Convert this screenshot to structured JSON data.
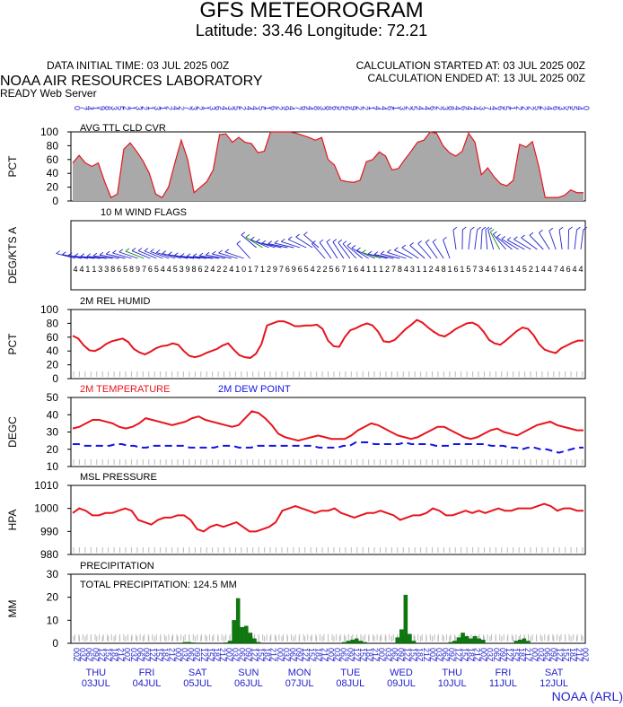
{
  "header": {
    "title": "GFS METEOROGRAM",
    "subtitle": "Latitude: 33.46 Longitude:  72.21",
    "init_time": "DATA INITIAL TIME: 03 JUL 2025 00Z",
    "calc_started": "CALCULATION STARTED AT: 03 JUL 2025 00Z",
    "calc_ended": "CALCULATION ENDED AT: 13 JUL 2025 00Z",
    "lab": "NOAA AIR RESOURCES LABORATORY",
    "server": "READY Web Server",
    "credit": "NOAA (ARL)"
  },
  "colors": {
    "cloud_fill": "#a9a9a9",
    "line_red": "#e8141e",
    "line_blue": "#1414e6",
    "precip": "#0a7a0a",
    "wind_blue": "#2222cc",
    "wind_green": "#0a8a0a",
    "tick_blue": "#2222cc"
  },
  "time_axis": {
    "hour_labels": [
      "00",
      "03",
      "06",
      "09",
      "12",
      "15",
      "18",
      "21"
    ],
    "days": [
      {
        "weekday": "THU",
        "date": "03JUL"
      },
      {
        "weekday": "FRI",
        "date": "04JUL"
      },
      {
        "weekday": "SAT",
        "date": "05JUL"
      },
      {
        "weekday": "SUN",
        "date": "06JUL"
      },
      {
        "weekday": "MON",
        "date": "07JUL"
      },
      {
        "weekday": "TUE",
        "date": "08JUL"
      },
      {
        "weekday": "WED",
        "date": "09JUL"
      },
      {
        "weekday": "THU",
        "date": "10JUL"
      },
      {
        "weekday": "FRI",
        "date": "11JUL"
      },
      {
        "weekday": "SAT",
        "date": "12JUL"
      }
    ],
    "end_label": "00"
  },
  "top_tick_labels": [
    "0",
    "7",
    "4",
    "1",
    "9",
    "8",
    "3",
    "5",
    "2",
    "1",
    "3",
    "2",
    "1",
    "3",
    "1",
    "2",
    "4",
    "2",
    "7",
    "3",
    "2",
    "1",
    "3",
    "6",
    "4",
    "3",
    "5",
    "2",
    "4",
    "4",
    "5",
    "1",
    "6",
    "2",
    "9",
    "4",
    "7",
    "6",
    "4",
    "8",
    "3",
    "8",
    "6",
    "5",
    "6",
    "9",
    "2",
    "2",
    "1",
    "4",
    "4",
    "6",
    "1",
    "3",
    "2",
    "5",
    "4",
    "4",
    "6",
    "2",
    "3",
    "8",
    "4",
    "6",
    "4",
    "4",
    "3",
    "7",
    "4",
    "6",
    "5",
    "1",
    "2",
    "2",
    "2",
    "5",
    "2",
    "4",
    "6",
    "3",
    "5",
    "5",
    "4",
    "0"
  ],
  "chart_data": [
    {
      "type": "area",
      "title": "AVG TTL CLD CVR",
      "ylabel": "PCT",
      "ylim": [
        0,
        100
      ],
      "yticks": [
        0,
        20,
        40,
        60,
        80,
        100
      ],
      "series": [
        {
          "values": [
            55,
            66,
            55,
            50,
            55,
            28,
            5,
            10,
            75,
            84,
            72,
            58,
            40,
            10,
            5,
            20,
            55,
            88,
            60,
            12,
            20,
            28,
            45,
            96,
            97,
            85,
            92,
            85,
            83,
            70,
            72,
            100,
            100,
            100,
            100,
            98,
            95,
            92,
            88,
            92,
            60,
            52,
            30,
            28,
            27,
            30,
            57,
            60,
            71,
            65,
            45,
            47,
            60,
            72,
            85,
            88,
            102,
            98,
            80,
            70,
            65,
            72,
            98,
            85,
            38,
            48,
            35,
            25,
            22,
            30,
            82,
            78,
            86,
            50,
            5,
            5,
            5,
            8,
            16,
            12,
            12
          ]
        }
      ]
    },
    {
      "type": "wind_flags",
      "title": "10 M  WIND FLAGS",
      "ylabel": "DEG/KTS  A",
      "speed_labels": [
        "4",
        "4",
        "1",
        "1",
        "3",
        "3",
        "8",
        "6",
        "5",
        "8",
        "9",
        "7",
        "6",
        "5",
        "4",
        "4",
        "5",
        "3",
        "9",
        "8",
        "6",
        "2",
        "4",
        "2",
        "2",
        "4",
        "1",
        "0",
        "1",
        "7",
        "1",
        "2",
        "9",
        "7",
        "6",
        "9",
        "6",
        "5",
        "4",
        "2",
        "2",
        "5",
        "6",
        "7",
        "1",
        "6",
        "4",
        "1",
        "1",
        "1",
        "2",
        "7",
        "8",
        "4",
        "3",
        "1",
        "1",
        "2",
        "4",
        "8",
        "1",
        "6",
        "1",
        "5",
        "7",
        "3",
        "4",
        "6",
        "1",
        "3",
        "1",
        "4",
        "5",
        "2",
        "1",
        "4",
        "4",
        "7",
        "4",
        "6",
        "4",
        "4"
      ]
    },
    {
      "type": "line",
      "title": "2M REL HUMID",
      "ylabel": "PCT",
      "ylim": [
        0,
        100
      ],
      "yticks": [
        0,
        20,
        40,
        60,
        80,
        100
      ],
      "series": [
        {
          "values": [
            62,
            58,
            48,
            41,
            40,
            44,
            50,
            54,
            56,
            58,
            53,
            43,
            38,
            35,
            39,
            44,
            47,
            48,
            51,
            49,
            40,
            33,
            31,
            33,
            37,
            40,
            43,
            48,
            51,
            42,
            34,
            31,
            30,
            36,
            50,
            77,
            80,
            83,
            83,
            80,
            76,
            76,
            77,
            77,
            78,
            72,
            55,
            47,
            46,
            60,
            70,
            73,
            77,
            80,
            77,
            68,
            54,
            53,
            56,
            64,
            72,
            78,
            85,
            81,
            74,
            68,
            63,
            61,
            66,
            72,
            76,
            80,
            81,
            77,
            68,
            56,
            51,
            49,
            55,
            62,
            69,
            74,
            72,
            63,
            50,
            42,
            39,
            37,
            44,
            48,
            52,
            55,
            55
          ]
        }
      ]
    },
    {
      "type": "line",
      "title": "2M TEMPERATURE",
      "second_title": "2M   DEW POINT",
      "ylabel": "DEGC",
      "ylim": [
        10,
        50
      ],
      "yticks": [
        10,
        20,
        30,
        40,
        50
      ],
      "series": [
        {
          "name": "2M TEMPERATURE",
          "values": [
            32,
            33,
            35,
            37,
            37,
            36,
            35,
            33,
            32,
            33,
            35,
            38,
            37,
            36,
            35,
            34,
            35,
            36,
            38,
            39,
            37,
            36,
            35,
            34,
            33,
            34,
            38,
            42,
            41,
            38,
            34,
            29,
            27,
            26,
            25,
            26,
            27,
            28,
            27,
            26,
            26,
            26,
            28,
            31,
            33,
            35,
            34,
            32,
            30,
            28,
            27,
            26,
            27,
            29,
            31,
            33,
            33,
            31,
            29,
            27,
            26,
            27,
            29,
            31,
            32,
            30,
            29,
            28,
            30,
            32,
            34,
            35,
            36,
            34,
            33,
            32,
            31,
            31
          ]
        },
        {
          "name": "2M   DEW POINT",
          "values": [
            23,
            23,
            22,
            22,
            22,
            22,
            22,
            23,
            23,
            22,
            22,
            21,
            21,
            22,
            22,
            22,
            22,
            22,
            22,
            21,
            21,
            21,
            21,
            21,
            22,
            22,
            22,
            21,
            21,
            21,
            22,
            22,
            22,
            22,
            22,
            22,
            22,
            22,
            22,
            22,
            21,
            21,
            21,
            21,
            22,
            22,
            24,
            24,
            24,
            23,
            23,
            23,
            23,
            23,
            24,
            23,
            23,
            23,
            23,
            22,
            22,
            22,
            23,
            23,
            23,
            23,
            23,
            23,
            22,
            22,
            22,
            21,
            21,
            20,
            21,
            21,
            20,
            20,
            19,
            18,
            19,
            20,
            21,
            21
          ]
        }
      ]
    },
    {
      "type": "line",
      "title": "MSL PRESSURE",
      "ylabel": "HPA",
      "ylim": [
        980,
        1010
      ],
      "yticks": [
        980,
        990,
        1000,
        1010
      ],
      "series": [
        {
          "values": [
            998,
            1000,
            999,
            997,
            997,
            998,
            998,
            999,
            1000,
            999,
            995,
            994,
            993,
            995,
            996,
            996,
            997,
            997,
            995,
            991,
            990,
            992,
            993,
            992,
            993,
            994,
            992,
            990,
            990,
            991,
            992,
            994,
            999,
            1000,
            1001,
            1000,
            999,
            998,
            999,
            999,
            1000,
            998,
            997,
            996,
            997,
            998,
            998,
            999,
            998,
            997,
            995,
            996,
            997,
            997,
            998,
            1000,
            999,
            997,
            997,
            998,
            999,
            998,
            999,
            998,
            999,
            1000,
            999,
            999,
            1000,
            1000,
            1000,
            1001,
            1002,
            1001,
            999,
            1000,
            1000,
            999,
            999
          ]
        }
      ]
    },
    {
      "type": "bar",
      "title": "PRECIPITATION",
      "annotation": "TOTAL PRECIPITATION: 124.5 MM",
      "ylabel": "MM",
      "ylim": [
        0,
        30
      ],
      "yticks": [
        0,
        10,
        20,
        30
      ],
      "series": [
        {
          "values": [
            0,
            0,
            0,
            0,
            0,
            0,
            0,
            0,
            0,
            0,
            0,
            0,
            0,
            0,
            0,
            0,
            0,
            0,
            0,
            0,
            0,
            0,
            0,
            0,
            0,
            0,
            0,
            0.5,
            0.5,
            0.3,
            0,
            0,
            0,
            0,
            0,
            0,
            0,
            0.3,
            1,
            10,
            19.5,
            7,
            7.5,
            4.5,
            2,
            0.5,
            0,
            0,
            0,
            0,
            0,
            0,
            0,
            0,
            0,
            0,
            0,
            0,
            0,
            0,
            0,
            0,
            0,
            0,
            0,
            0,
            0.5,
            1,
            1.5,
            2,
            1,
            0.5,
            0,
            0,
            0,
            0,
            0,
            0,
            0,
            2.5,
            6,
            21,
            4,
            1,
            0,
            0,
            0,
            0,
            0,
            0,
            0,
            0,
            0.5,
            1,
            2.5,
            4.5,
            3,
            2,
            3,
            2,
            1.5,
            0,
            0,
            0,
            0,
            0,
            0,
            0,
            1,
            1.5,
            2,
            1,
            0,
            0,
            0,
            0,
            0,
            0,
            0,
            0,
            0,
            0,
            0,
            0,
            0
          ]
        }
      ]
    }
  ]
}
